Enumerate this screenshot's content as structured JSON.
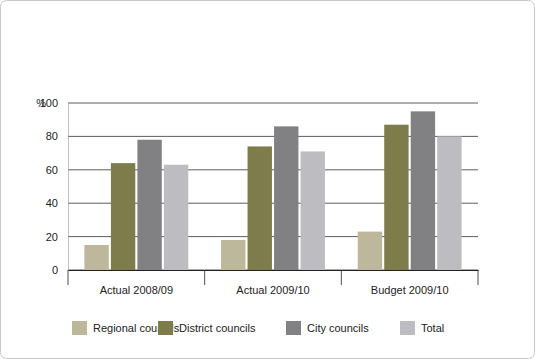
{
  "chart_data": {
    "type": "bar",
    "y_label": "%",
    "categories": [
      "Actual 2008/09",
      "Actual 2009/10",
      "Budget 2009/10"
    ],
    "series": [
      {
        "name": "Regional councils",
        "color": "#bdb79c",
        "values": [
          15,
          18,
          23
        ]
      },
      {
        "name": "District councils",
        "color": "#7e7c4b",
        "values": [
          64,
          74,
          87
        ]
      },
      {
        "name": "City councils",
        "color": "#818184",
        "values": [
          78,
          86,
          95
        ]
      },
      {
        "name": "Total",
        "color": "#bdbdc1",
        "values": [
          63,
          71,
          80
        ]
      }
    ],
    "ylim": [
      0,
      100
    ],
    "yticks": [
      0,
      20,
      40,
      60,
      80,
      100
    ],
    "grid": true,
    "legend": "bottom"
  }
}
